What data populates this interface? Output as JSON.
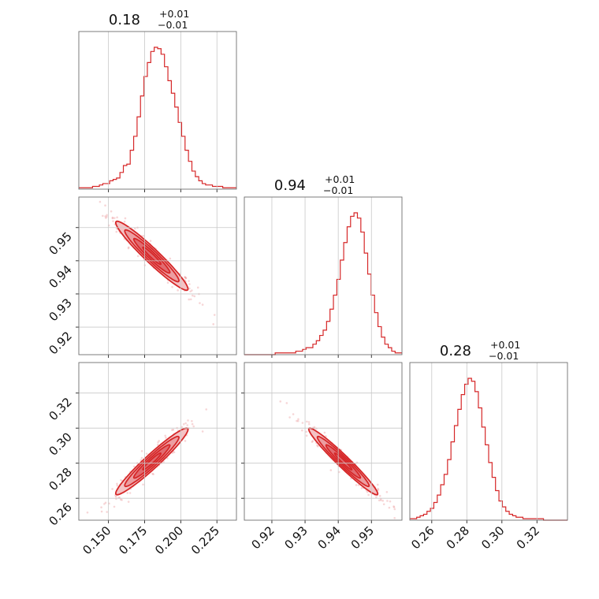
{
  "chart_data": {
    "type": "corner",
    "colors": {
      "primary": "#d62728",
      "fill_light": "#f4c2c4",
      "fill_mid": "#ec9ea1",
      "fill_dark": "#e16b70",
      "grid": "#c8c8c8"
    },
    "grid": true,
    "parameters": [
      {
        "id": "p0",
        "median": 0.18,
        "title_main": "0.18",
        "title_plus": "+0.01",
        "title_minus": "−0.01",
        "range": [
          0.1295,
          0.2385
        ],
        "ticks": [
          0.15,
          0.175,
          0.2,
          0.225
        ],
        "tick_labels": [
          "0.150",
          "0.175",
          "0.200",
          "0.225"
        ]
      },
      {
        "id": "p1",
        "median": 0.94,
        "title_main": "0.94",
        "title_plus": "+0.01",
        "title_minus": "−0.01",
        "range": [
          0.9117,
          0.9592
        ],
        "ticks": [
          0.92,
          0.93,
          0.94,
          0.95
        ],
        "tick_labels": [
          "0.92",
          "0.93",
          "0.94",
          "0.95"
        ]
      },
      {
        "id": "p2",
        "median": 0.28,
        "title_main": "0.28",
        "title_plus": "+0.01",
        "title_minus": "−0.01",
        "range": [
          0.2475,
          0.3374
        ],
        "ticks": [
          0.26,
          0.28,
          0.3,
          0.32
        ],
        "tick_labels": [
          "0.26",
          "0.28",
          "0.30",
          "0.32"
        ]
      }
    ],
    "histograms": [
      {
        "param": "p0",
        "bin_edges_range": [
          0.1295,
          0.2385
        ],
        "counts": [
          1,
          1,
          1,
          1,
          2,
          2,
          3,
          4,
          4,
          6,
          7,
          8,
          12,
          17,
          18,
          28,
          38,
          52,
          67,
          81,
          91,
          99,
          102,
          101,
          97,
          88,
          78,
          69,
          59,
          48,
          38,
          28,
          20,
          13,
          9,
          6,
          4,
          3,
          3,
          2,
          2,
          2,
          1,
          1,
          1,
          1
        ]
      },
      {
        "param": "p1",
        "bin_edges_range": [
          0.9117,
          0.9592
        ],
        "counts": [
          0,
          0,
          0,
          0,
          0,
          0,
          0,
          0,
          0,
          1,
          1,
          1,
          1,
          1,
          1,
          2,
          2,
          3,
          4,
          4,
          6,
          8,
          11,
          14,
          19,
          26,
          34,
          43,
          54,
          64,
          73,
          79,
          81,
          78,
          70,
          58,
          46,
          34,
          24,
          16,
          10,
          6,
          4,
          2,
          1,
          1
        ]
      },
      {
        "param": "p2",
        "bin_edges_range": [
          0.2475,
          0.3374
        ],
        "counts": [
          1,
          1,
          2,
          3,
          4,
          6,
          8,
          12,
          17,
          24,
          31,
          41,
          53,
          64,
          75,
          85,
          92,
          96,
          94,
          87,
          76,
          63,
          51,
          39,
          29,
          20,
          13,
          9,
          6,
          4,
          3,
          2,
          2,
          1,
          1,
          1,
          1,
          1,
          1,
          0,
          0,
          0,
          0,
          0,
          0,
          0
        ]
      }
    ],
    "pairs": [
      {
        "x_param": "p0",
        "y_param": "p1",
        "correlation": -0.96,
        "x_mean": 0.18,
        "y_mean": 0.9415,
        "x_sd": 0.0125,
        "y_sd": 0.0052
      },
      {
        "x_param": "p0",
        "y_param": "p2",
        "correlation": 0.96,
        "x_mean": 0.18,
        "y_mean": 0.281,
        "x_sd": 0.0125,
        "y_sd": 0.0095
      },
      {
        "x_param": "p1",
        "y_param": "p2",
        "correlation": -0.97,
        "x_mean": 0.9415,
        "y_mean": 0.281,
        "x_sd": 0.0052,
        "y_sd": 0.0095
      }
    ],
    "contour_levels_sigma": [
      0.5,
      1.0,
      1.5,
      2.0
    ]
  }
}
